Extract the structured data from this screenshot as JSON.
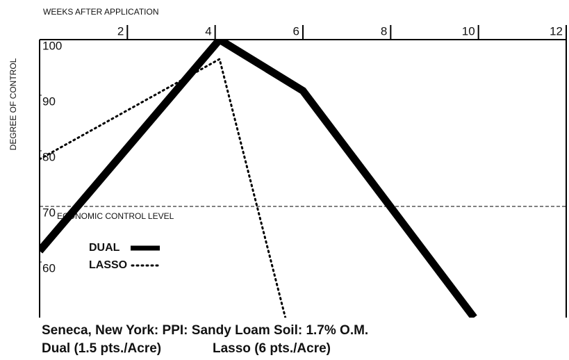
{
  "chart_data": {
    "type": "line",
    "x_label": "WEEKS AFTER APPLICATION",
    "y_label": "DEGREE OF CONTROL",
    "xlim": [
      0,
      12
    ],
    "xticks": [
      2,
      4,
      6,
      8,
      10,
      12
    ],
    "ylim": [
      50,
      100
    ],
    "yticks": [
      60,
      70,
      80,
      90,
      100
    ],
    "reference_line": {
      "value": 70,
      "label": "ECONOMIC CONTROL LEVEL"
    },
    "legend": "lower left",
    "series": [
      {
        "name": "DUAL",
        "color": "#000000",
        "dash": "solid",
        "x": [
          0,
          4.1,
          6,
          9.9
        ],
        "values": [
          62,
          100,
          90.8,
          50
        ]
      },
      {
        "name": "LASSO",
        "color": "#000000",
        "dash": "dotted",
        "x": [
          0,
          4.1,
          5.6
        ],
        "values": [
          78.5,
          96.5,
          50
        ]
      }
    ],
    "notes": [
      "Seneca, New York: PPI: Sandy Loam Soil: 1.7% O.M.",
      "Dual (1.5 pts./Acre)",
      "Lasso (6 pts./Acre)"
    ]
  }
}
